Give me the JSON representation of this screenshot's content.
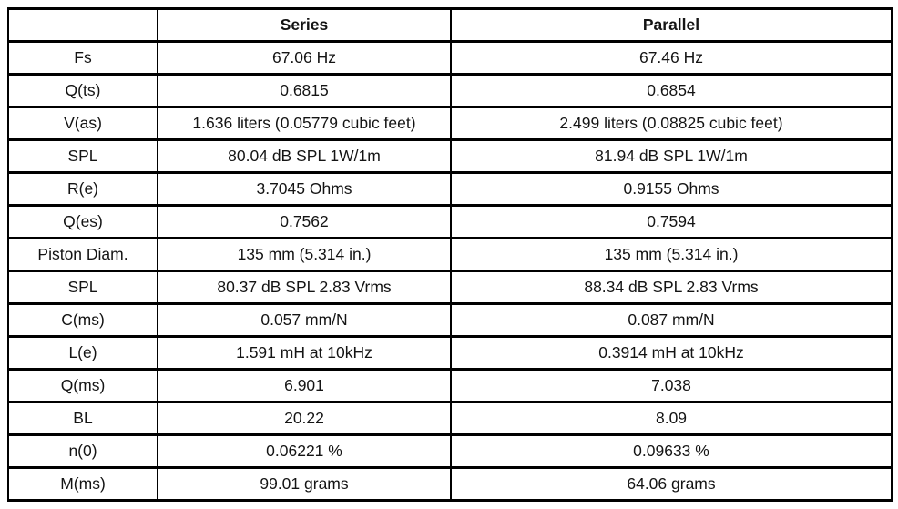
{
  "colors": {
    "border": "#000000",
    "text": "#141414",
    "background": "#ffffff"
  },
  "chart_data": {
    "type": "table",
    "columns": [
      "",
      "Series",
      "Parallel"
    ],
    "rows": [
      [
        "Fs",
        "67.06 Hz",
        "67.46 Hz"
      ],
      [
        "Q(ts)",
        "0.6815",
        "0.6854"
      ],
      [
        "V(as)",
        "1.636 liters (0.05779 cubic feet)",
        "2.499 liters (0.08825 cubic feet)"
      ],
      [
        "SPL",
        "80.04 dB SPL 1W/1m",
        "81.94 dB SPL 1W/1m"
      ],
      [
        "R(e)",
        "3.7045 Ohms",
        "0.9155 Ohms"
      ],
      [
        "Q(es)",
        "0.7562",
        "0.7594"
      ],
      [
        "Piston Diam.",
        "135 mm (5.314 in.)",
        "135 mm (5.314 in.)"
      ],
      [
        "SPL",
        "80.37 dB SPL 2.83 Vrms",
        "88.34 dB SPL 2.83 Vrms"
      ],
      [
        "C(ms)",
        "0.057 mm/N",
        "0.087 mm/N"
      ],
      [
        "L(e)",
        "1.591 mH at 10kHz",
        "0.3914 mH at 10kHz"
      ],
      [
        "Q(ms)",
        "6.901",
        "7.038"
      ],
      [
        "BL",
        "20.22",
        "8.09"
      ],
      [
        "n(0)",
        "0.06221 %",
        "0.09633 %"
      ],
      [
        "M(ms)",
        "99.01 grams",
        "64.06 grams"
      ]
    ]
  }
}
